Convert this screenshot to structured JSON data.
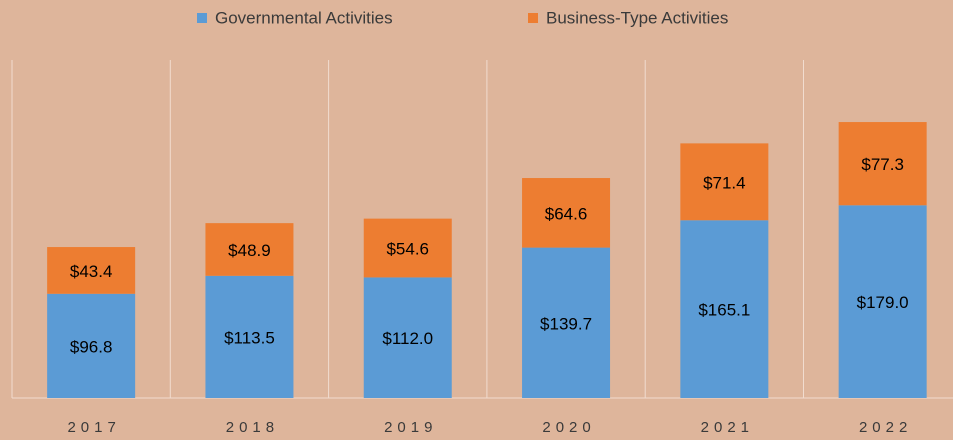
{
  "chart_data": {
    "type": "stacked_bar",
    "categories": [
      "2017",
      "2018",
      "2019",
      "2020",
      "2021",
      "2022"
    ],
    "series": [
      {
        "name": "Governmental Activities",
        "color": "#5b9bd5",
        "values": [
          96.8,
          113.5,
          112.0,
          139.7,
          165.1,
          179.0
        ],
        "value_labels": [
          "$96.8",
          "$113.5",
          "$112.0",
          "$139.7",
          "$165.1",
          "$179.0"
        ]
      },
      {
        "name": "Business-Type Activities",
        "color": "#ed7d31",
        "values": [
          43.4,
          48.9,
          54.6,
          64.6,
          71.4,
          77.3
        ],
        "value_labels": [
          "$43.4",
          "$48.9",
          "$54.6",
          "$64.6",
          "$71.4",
          "$77.3"
        ]
      }
    ],
    "ylim": [
      0,
      300
    ],
    "legend": "top"
  }
}
